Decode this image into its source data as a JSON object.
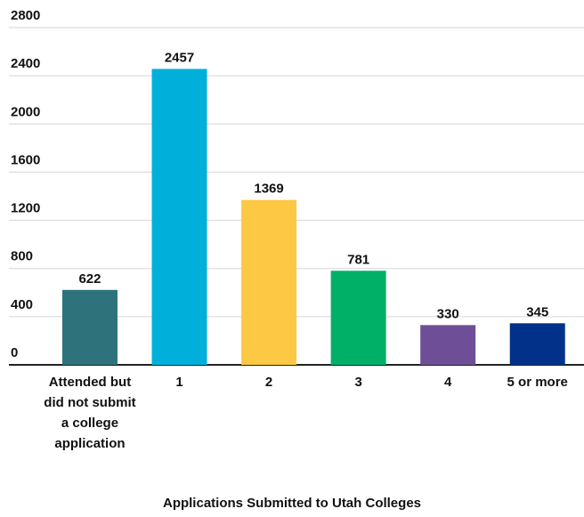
{
  "chart_data": {
    "type": "bar",
    "x_label": "Applications Submitted to Utah Colleges",
    "categories": [
      "Attended but did not submit a college application",
      "1",
      "2",
      "3",
      "4",
      "5 or more"
    ],
    "values": [
      622,
      2457,
      1369,
      781,
      330,
      345
    ],
    "colors": [
      "#2e737b",
      "#00b0da",
      "#fdc843",
      "#00b066",
      "#6e4f97",
      "#013188"
    ],
    "ylim": [
      0,
      2800
    ],
    "yticks": [
      0,
      400,
      800,
      1200,
      1600,
      2000,
      2400,
      2800
    ],
    "grid": true
  }
}
